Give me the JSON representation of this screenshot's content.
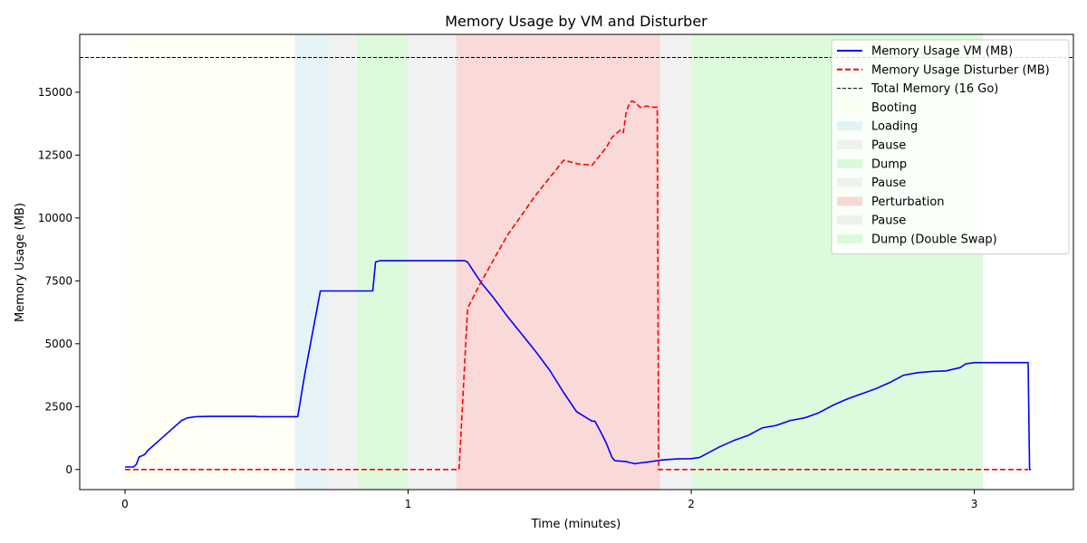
{
  "chart_data": {
    "type": "line",
    "title": "Memory Usage by VM and Disturber",
    "xlabel": "Time (minutes)",
    "ylabel": "Memory Usage (MB)",
    "xlim": [
      -0.16,
      3.35
    ],
    "ylim": [
      -800,
      17300
    ],
    "xticks": [
      0,
      1,
      2,
      3
    ],
    "yticks": [
      0,
      2500,
      5000,
      7500,
      10000,
      12500,
      15000
    ],
    "legend_position": "top-right",
    "grid": false,
    "total_memory": {
      "name": "Total Memory (16 Go)",
      "value": 16384,
      "color": "#000000"
    },
    "phases": [
      {
        "name": "Booting",
        "start": 0.0,
        "end": 0.6,
        "color": "#ffffe0"
      },
      {
        "name": "Loading",
        "start": 0.6,
        "end": 0.72,
        "color": "#add8e6"
      },
      {
        "name": "Pause",
        "start": 0.72,
        "end": 0.82,
        "color": "#d3d3d3"
      },
      {
        "name": "Dump",
        "start": 0.82,
        "end": 1.0,
        "color": "#90ee90"
      },
      {
        "name": "Pause",
        "start": 1.0,
        "end": 1.17,
        "color": "#d3d3d3"
      },
      {
        "name": "Perturbation",
        "start": 1.17,
        "end": 1.89,
        "color": "#f08080"
      },
      {
        "name": "Pause",
        "start": 1.89,
        "end": 2.0,
        "color": "#d3d3d3"
      },
      {
        "name": "Dump (Double Swap)",
        "start": 2.0,
        "end": 3.03,
        "color": "#90ee90"
      }
    ],
    "series": [
      {
        "name": "Memory Usage VM (MB)",
        "color": "#0000ff",
        "style": "solid",
        "x": [
          0.0,
          0.03,
          0.04,
          0.05,
          0.055,
          0.07,
          0.08,
          0.1,
          0.12,
          0.14,
          0.16,
          0.18,
          0.2,
          0.22,
          0.25,
          0.3,
          0.35,
          0.4,
          0.46,
          0.47,
          0.55,
          0.61,
          0.635,
          0.69,
          0.7,
          0.75,
          0.8,
          0.85,
          0.875,
          0.885,
          0.9,
          0.95,
          1.0,
          1.1,
          1.2,
          1.21,
          1.23,
          1.26,
          1.3,
          1.35,
          1.4,
          1.45,
          1.5,
          1.55,
          1.595,
          1.65,
          1.66,
          1.68,
          1.7,
          1.72,
          1.73,
          1.75,
          1.77,
          1.78,
          1.79,
          1.8,
          1.82,
          1.85,
          1.88,
          1.9,
          1.95,
          2.0,
          2.03,
          2.05,
          2.1,
          2.15,
          2.2,
          2.25,
          2.3,
          2.35,
          2.4,
          2.45,
          2.5,
          2.55,
          2.6,
          2.65,
          2.7,
          2.75,
          2.8,
          2.85,
          2.9,
          2.95,
          2.97,
          3.0,
          3.1,
          3.19,
          3.195,
          3.2
        ],
        "y": [
          100,
          100,
          200,
          500,
          520,
          600,
          750,
          950,
          1150,
          1350,
          1550,
          1750,
          1950,
          2050,
          2100,
          2110,
          2110,
          2110,
          2110,
          2100,
          2100,
          2100,
          3800,
          7100,
          7100,
          7100,
          7100,
          7100,
          7100,
          8250,
          8300,
          8300,
          8300,
          8300,
          8300,
          8250,
          7900,
          7400,
          6850,
          6100,
          5400,
          4700,
          3950,
          3050,
          2300,
          1920,
          1920,
          1500,
          1050,
          480,
          350,
          330,
          320,
          280,
          260,
          230,
          260,
          300,
          350,
          380,
          420,
          430,
          480,
          600,
          900,
          1150,
          1350,
          1650,
          1750,
          1950,
          2050,
          2250,
          2550,
          2800,
          3000,
          3200,
          3450,
          3750,
          3850,
          3900,
          3920,
          4050,
          4200,
          4250,
          4250,
          4250,
          0,
          0
        ]
      },
      {
        "name": "Memory Usage Disturber (MB)",
        "color": "#ff0000",
        "style": "dashed",
        "x": [
          0.0,
          1.18,
          1.21,
          1.25,
          1.3,
          1.35,
          1.4,
          1.45,
          1.5,
          1.55,
          1.6,
          1.65,
          1.7,
          1.72,
          1.75,
          1.76,
          1.77,
          1.78,
          1.79,
          1.8,
          1.82,
          1.83,
          1.84,
          1.87,
          1.88,
          1.885,
          1.9,
          2.0,
          2.5,
          3.19
        ],
        "y": [
          0,
          0,
          6400,
          7300,
          8300,
          9300,
          10100,
          10900,
          11600,
          12300,
          12150,
          12100,
          12800,
          13200,
          13500,
          13400,
          14200,
          14500,
          14650,
          14600,
          14400,
          14400,
          14450,
          14400,
          14400,
          0,
          0,
          0,
          0,
          0
        ]
      }
    ]
  }
}
